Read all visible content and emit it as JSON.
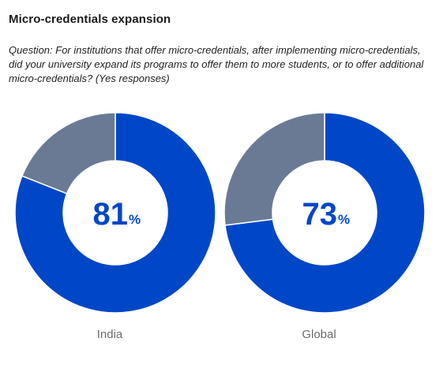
{
  "title": "Micro-credentials expansion",
  "question": "Question: For institutions that offer micro-credentials, after implementing micro-credentials, did your university expand its programs to offer them to more students, or to offer additional micro-credentials? (Yes responses)",
  "colors": {
    "yes": "#0047c8",
    "other": "#6a7a95",
    "number": "#0047c8",
    "label": "#6b6b6b"
  },
  "chart_data": [
    {
      "type": "pie",
      "category": "India",
      "values": [
        81,
        19
      ],
      "display_value": "81",
      "unit": "%"
    },
    {
      "type": "pie",
      "category": "Global",
      "values": [
        73,
        27
      ],
      "display_value": "73",
      "unit": "%"
    }
  ]
}
